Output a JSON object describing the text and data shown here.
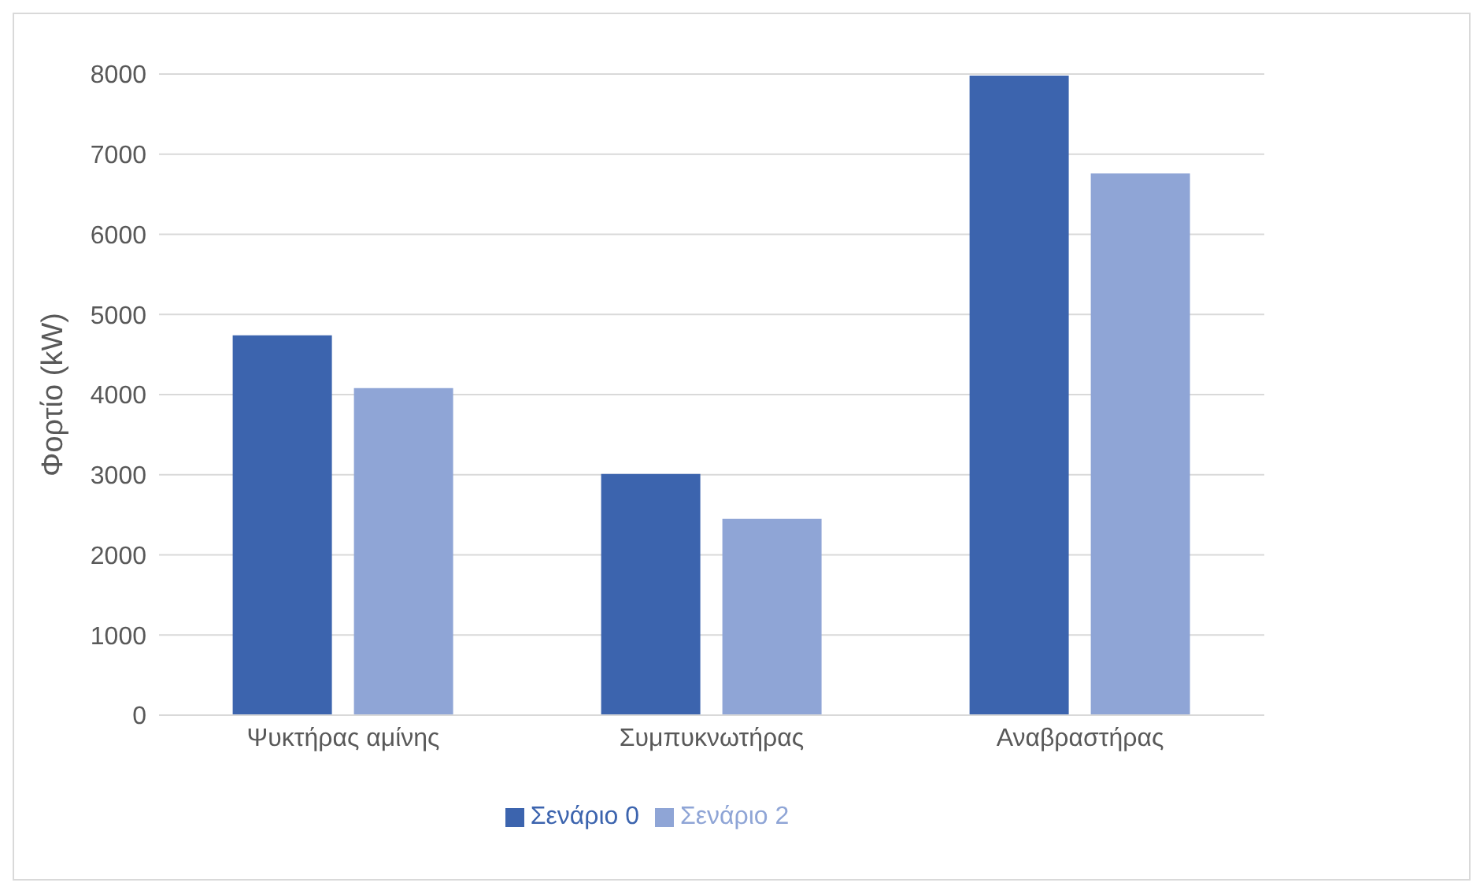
{
  "chart_data": {
    "type": "bar",
    "ylabel": "Φορτίο (kW)",
    "categories": [
      "Ψυκτήρας αμίνης",
      "Συμπυκνωτήρας",
      "Αναβραστήρας"
    ],
    "series": [
      {
        "name": "Σενάριο 0",
        "color": "#3c64ae",
        "values": [
          4740,
          3010,
          7980
        ]
      },
      {
        "name": "Σενάριο 2",
        "color": "#8fa5d6",
        "values": [
          4080,
          2450,
          6760
        ]
      }
    ],
    "ylim": [
      0,
      8000
    ],
    "yticks": [
      0,
      1000,
      2000,
      3000,
      4000,
      5000,
      6000,
      7000,
      8000
    ],
    "grid": "y",
    "legend": "bottom"
  }
}
